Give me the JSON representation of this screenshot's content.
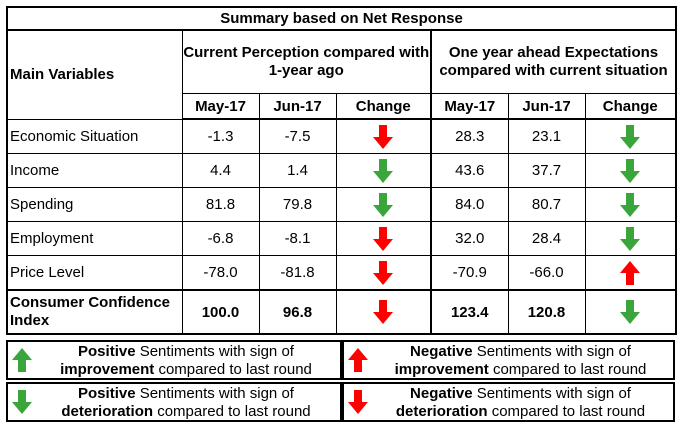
{
  "title": "Summary based on Net Response",
  "headers": {
    "main_variables": "Main Variables",
    "current": "Current Perception compared with 1-year ago",
    "expect": "One year ahead Expectations compared with current situation",
    "col_may": "May-17",
    "col_jun": "Jun-17",
    "col_change": "Change"
  },
  "rows": [
    {
      "label": "Economic Situation",
      "cur_may": "-1.3",
      "cur_jun": "-7.5",
      "cur_change": "down-red",
      "exp_may": "28.3",
      "exp_jun": "23.1",
      "exp_change": "down-green"
    },
    {
      "label": "Income",
      "cur_may": "4.4",
      "cur_jun": "1.4",
      "cur_change": "down-green",
      "exp_may": "43.6",
      "exp_jun": "37.7",
      "exp_change": "down-green"
    },
    {
      "label": "Spending",
      "cur_may": "81.8",
      "cur_jun": "79.8",
      "cur_change": "down-green",
      "exp_may": "84.0",
      "exp_jun": "80.7",
      "exp_change": "down-green"
    },
    {
      "label": "Employment",
      "cur_may": "-6.8",
      "cur_jun": "-8.1",
      "cur_change": "down-red",
      "exp_may": "32.0",
      "exp_jun": "28.4",
      "exp_change": "down-green"
    },
    {
      "label": "Price Level",
      "cur_may": "-78.0",
      "cur_jun": "-81.8",
      "cur_change": "down-red",
      "exp_may": "-70.9",
      "exp_jun": "-66.0",
      "exp_change": "up-red"
    }
  ],
  "cci": {
    "label": "Consumer Confidence Index",
    "cur_may": "100.0",
    "cur_jun": "96.8",
    "cur_change": "down-red",
    "exp_may": "123.4",
    "exp_jun": "120.8",
    "exp_change": "down-green"
  },
  "legend": {
    "pos_imp": {
      "bold1": "Positive",
      "text1": " Sentiments with sign of",
      "bold2": "improvement",
      "text2": " compared to last round",
      "icon": "up-green"
    },
    "neg_imp": {
      "bold1": "Negative",
      "text1": " Sentiments with sign of",
      "bold2": "improvement",
      "text2": " compared to last round",
      "icon": "up-red"
    },
    "pos_det": {
      "bold1": "Positive",
      "text1": " Sentiments with sign of",
      "bold2": "deterioration",
      "text2": " compared to last round",
      "icon": "down-green"
    },
    "neg_det": {
      "bold1": "Negative",
      "text1": " Sentiments with sign of",
      "bold2": "deterioration",
      "text2": " compared to last round",
      "icon": "down-red"
    }
  },
  "colors": {
    "green": "#3aa53a",
    "red": "#ff0000"
  }
}
